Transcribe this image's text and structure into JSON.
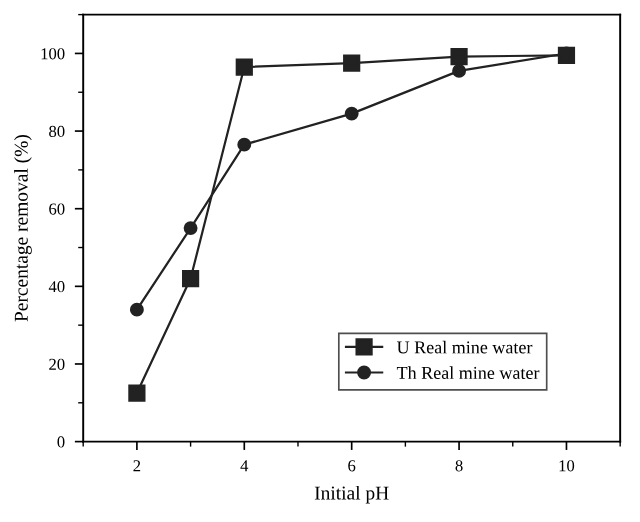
{
  "chart_data": {
    "type": "line",
    "xlabel": "Initial pH",
    "ylabel": "Percentage removal (%)",
    "x": [
      2,
      3,
      4,
      6,
      8,
      10
    ],
    "series": [
      {
        "name": "U Real mine water",
        "color": "#222222",
        "marker": "square",
        "values": [
          12.5,
          42,
          96.5,
          97.5,
          99.2,
          99.5
        ]
      },
      {
        "name": "Th Real mine water",
        "color": "#222222",
        "marker": "circle",
        "values": [
          34,
          55,
          76.5,
          84.5,
          95.5,
          100
        ]
      }
    ],
    "xlim": [
      1,
      11
    ],
    "xticks": [
      2,
      4,
      6,
      8,
      10
    ],
    "ylim": [
      0,
      110
    ],
    "yticks": [
      0,
      20,
      40,
      60,
      80,
      100
    ],
    "grid": false,
    "legend": "bottom right",
    "line_style": "solid"
  }
}
